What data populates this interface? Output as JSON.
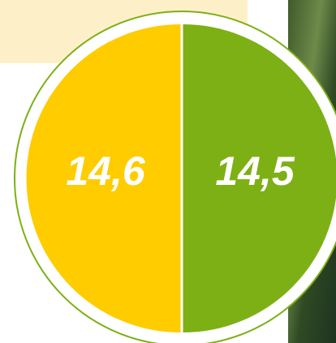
{
  "left": {
    "label": "14,6"
  },
  "right": {
    "label": "14,5"
  }
}
